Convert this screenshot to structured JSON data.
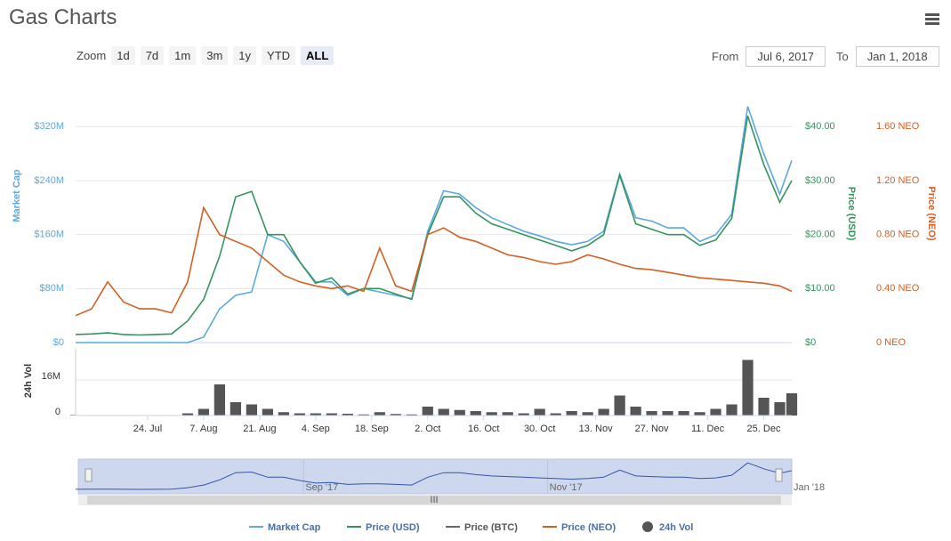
{
  "chart_data": [
    {
      "type": "line",
      "title": "Gas Charts",
      "x": [
        "2017-07-06",
        "2017-07-10",
        "2017-07-14",
        "2017-07-18",
        "2017-07-22",
        "2017-07-26",
        "2017-07-30",
        "2017-08-03",
        "2017-08-07",
        "2017-08-11",
        "2017-08-15",
        "2017-08-19",
        "2017-08-23",
        "2017-08-27",
        "2017-08-31",
        "2017-09-04",
        "2017-09-08",
        "2017-09-12",
        "2017-09-16",
        "2017-09-20",
        "2017-09-24",
        "2017-09-28",
        "2017-10-02",
        "2017-10-06",
        "2017-10-10",
        "2017-10-14",
        "2017-10-18",
        "2017-10-22",
        "2017-10-26",
        "2017-10-30",
        "2017-11-03",
        "2017-11-07",
        "2017-11-11",
        "2017-11-15",
        "2017-11-19",
        "2017-11-23",
        "2017-11-27",
        "2017-12-01",
        "2017-12-05",
        "2017-12-09",
        "2017-12-13",
        "2017-12-17",
        "2017-12-21",
        "2017-12-25",
        "2017-12-29",
        "2018-01-01"
      ],
      "xlim": [
        "2017-07-06",
        "2018-01-01"
      ],
      "xticks": [
        {
          "value": "2017-07-24",
          "label": "24. Jul"
        },
        {
          "value": "2017-08-07",
          "label": "7. Aug"
        },
        {
          "value": "2017-08-21",
          "label": "21. Aug"
        },
        {
          "value": "2017-09-04",
          "label": "4. Sep"
        },
        {
          "value": "2017-09-18",
          "label": "18. Sep"
        },
        {
          "value": "2017-10-02",
          "label": "2. Oct"
        },
        {
          "value": "2017-10-16",
          "label": "16. Oct"
        },
        {
          "value": "2017-10-30",
          "label": "30. Oct"
        },
        {
          "value": "2017-11-13",
          "label": "13. Nov"
        },
        {
          "value": "2017-11-27",
          "label": "27. Nov"
        },
        {
          "value": "2017-12-11",
          "label": "11. Dec"
        },
        {
          "value": "2017-12-25",
          "label": "25. Dec"
        }
      ],
      "ylabel": "Market Cap",
      "y2label": "Price (USD)",
      "y3label": "Price (NEO)",
      "ylim": [
        0,
        360000000
      ],
      "yticks": [
        {
          "value": 0,
          "label": "$0"
        },
        {
          "value": 80000000,
          "label": "$80M"
        },
        {
          "value": 160000000,
          "label": "$160M"
        },
        {
          "value": 240000000,
          "label": "$240M"
        },
        {
          "value": 320000000,
          "label": "$320M"
        }
      ],
      "y2lim": [
        0,
        45
      ],
      "y2ticks": [
        {
          "value": 0,
          "label": "$0"
        },
        {
          "value": 10,
          "label": "$10.00"
        },
        {
          "value": 20,
          "label": "$20.00"
        },
        {
          "value": 30,
          "label": "$30.00"
        },
        {
          "value": 40,
          "label": "$40.00"
        }
      ],
      "y3lim": [
        0,
        1.8
      ],
      "y3ticks": [
        {
          "value": 0,
          "label": "0 NEO"
        },
        {
          "value": 0.4,
          "label": "0.40 NEO"
        },
        {
          "value": 0.8,
          "label": "0.80 NEO"
        },
        {
          "value": 1.2,
          "label": "1.20 NEO"
        },
        {
          "value": 1.6,
          "label": "1.60 NEO"
        }
      ],
      "grid": true,
      "series": [
        {
          "name": "Market Cap",
          "color": "#5aa9df",
          "axis": "y",
          "values": [
            0,
            0,
            0,
            0,
            0,
            0,
            0,
            0,
            8000000,
            50000000,
            70000000,
            75000000,
            160000000,
            150000000,
            120000000,
            90000000,
            90000000,
            70000000,
            80000000,
            75000000,
            70000000,
            65000000,
            165000000,
            225000000,
            220000000,
            200000000,
            185000000,
            175000000,
            165000000,
            158000000,
            150000000,
            145000000,
            150000000,
            165000000,
            250000000,
            185000000,
            180000000,
            170000000,
            170000000,
            150000000,
            160000000,
            190000000,
            350000000,
            280000000,
            220000000,
            270000000
          ]
        },
        {
          "name": "Price (USD)",
          "color": "#34945e",
          "axis": "y2",
          "values": [
            1.5,
            1.6,
            1.8,
            1.5,
            1.4,
            1.5,
            1.6,
            4,
            8,
            16,
            27,
            28,
            20,
            20,
            15,
            11,
            12,
            9,
            10,
            10,
            9,
            8,
            20,
            27,
            27,
            24,
            22,
            21,
            20,
            19,
            18,
            17,
            18,
            20,
            31,
            22,
            21,
            20,
            20,
            18,
            19,
            23,
            42,
            33,
            26,
            30
          ]
        },
        {
          "name": "Price (BTC)",
          "color": "#666666",
          "visible": false
        },
        {
          "name": "Price (NEO)",
          "color": "#d35f24",
          "axis": "y3",
          "values": [
            0.2,
            0.25,
            0.45,
            0.3,
            0.25,
            0.25,
            0.22,
            0.45,
            1.0,
            0.8,
            0.75,
            0.7,
            0.6,
            0.5,
            0.45,
            0.42,
            0.4,
            0.42,
            0.38,
            0.7,
            0.42,
            0.38,
            0.8,
            0.85,
            0.78,
            0.75,
            0.7,
            0.65,
            0.63,
            0.6,
            0.58,
            0.6,
            0.65,
            0.62,
            0.58,
            0.55,
            0.54,
            0.52,
            0.5,
            0.48,
            0.47,
            0.46,
            0.45,
            0.44,
            0.42,
            0.38
          ]
        }
      ]
    },
    {
      "type": "bar",
      "ylabel": "24h Vol",
      "ylim": [
        0,
        30000000
      ],
      "yticks": [
        0,
        {
          "value": 16000000,
          "label": "16M"
        }
      ],
      "grid": true,
      "series": [
        {
          "name": "24h Vol",
          "color": "#555555",
          "values": [
            200000,
            200000,
            200000,
            200000,
            200000,
            200000,
            200000,
            1000000,
            3000000,
            14000000,
            6000000,
            5000000,
            3000000,
            1500000,
            1000000,
            1000000,
            1000000,
            800000,
            500000,
            1500000,
            700000,
            500000,
            4000000,
            3000000,
            2500000,
            2000000,
            1500000,
            1500000,
            1000000,
            3000000,
            1000000,
            2000000,
            1500000,
            3000000,
            9000000,
            4000000,
            2000000,
            2000000,
            2000000,
            1500000,
            3000000,
            5000000,
            25000000,
            8000000,
            6000000,
            10000000
          ]
        }
      ]
    }
  ],
  "zoom": {
    "label": "Zoom",
    "buttons": [
      "1d",
      "7d",
      "1m",
      "3m",
      "1y",
      "YTD",
      "ALL"
    ],
    "selected": 6
  },
  "range": {
    "from_label": "From",
    "from": "Jul 6, 2017",
    "to_label": "To",
    "to": "Jan 1, 2018"
  },
  "navigator": {
    "labels": [
      {
        "date": "2017-09-01",
        "text": "Sep '17"
      },
      {
        "date": "2017-11-01",
        "text": "Nov '17"
      },
      {
        "date": "2018-01-01",
        "text": "Jan '18"
      }
    ]
  }
}
